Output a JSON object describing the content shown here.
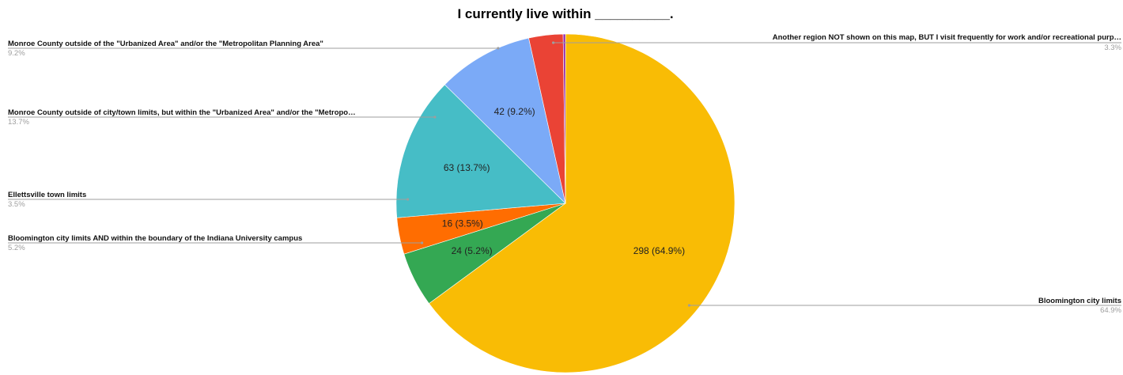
{
  "chart_data": {
    "type": "pie",
    "title": "I currently live within __________.",
    "slices": [
      {
        "name": "Bloomington city limits",
        "legend_label": "Bloomington city limits",
        "value": 298,
        "percent": "64.9%",
        "slice_label": "298 (64.9%)",
        "color": "#f9bc05"
      },
      {
        "name": "Bloomington city limits AND within the boundary of the Indiana University campus",
        "legend_label": "Bloomington city limits AND within the boundary of the Indiana University campus",
        "value": 24,
        "percent": "5.2%",
        "slice_label": "24 (5.2%)",
        "color": "#34a853"
      },
      {
        "name": "Ellettsville town limits",
        "legend_label": "Ellettsville town limits",
        "value": 16,
        "percent": "3.5%",
        "slice_label": "16 (3.5%)",
        "color": "#ff6d01"
      },
      {
        "name": "Monroe County outside of city/town limits, but within the \"Urbanized Area\" and/or the \"Metropolitan Planning Area\"",
        "legend_label": "Monroe County outside of city/town limits, but within the \"Urbanized Area\" and/or the \"Metropo…",
        "value": 63,
        "percent": "13.7%",
        "slice_label": "63 (13.7%)",
        "color": "#46bdc6"
      },
      {
        "name": "Monroe County outside of the \"Urbanized Area\" and/or the \"Metropolitan Planning Area\"",
        "legend_label": "Monroe County outside of the \"Urbanized Area\" and/or the \"Metropolitan Planning Area\"",
        "value": 42,
        "percent": "9.2%",
        "slice_label": "42 (9.2%)",
        "color": "#7baaf7"
      },
      {
        "name": "Another region NOT shown on this map, BUT I visit frequently for work and/or recreational purposes",
        "legend_label": "Another region NOT shown on this map, BUT I visit frequently for work and/or recreational purp…",
        "value": 15,
        "percent": "3.3%",
        "slice_label": "",
        "color": "#ea4335"
      },
      {
        "name": "",
        "legend_label": "",
        "value": 1,
        "percent": "",
        "slice_label": "",
        "color": "#8e24aa"
      }
    ],
    "legend_placement": "around the pie, with leader lines"
  }
}
